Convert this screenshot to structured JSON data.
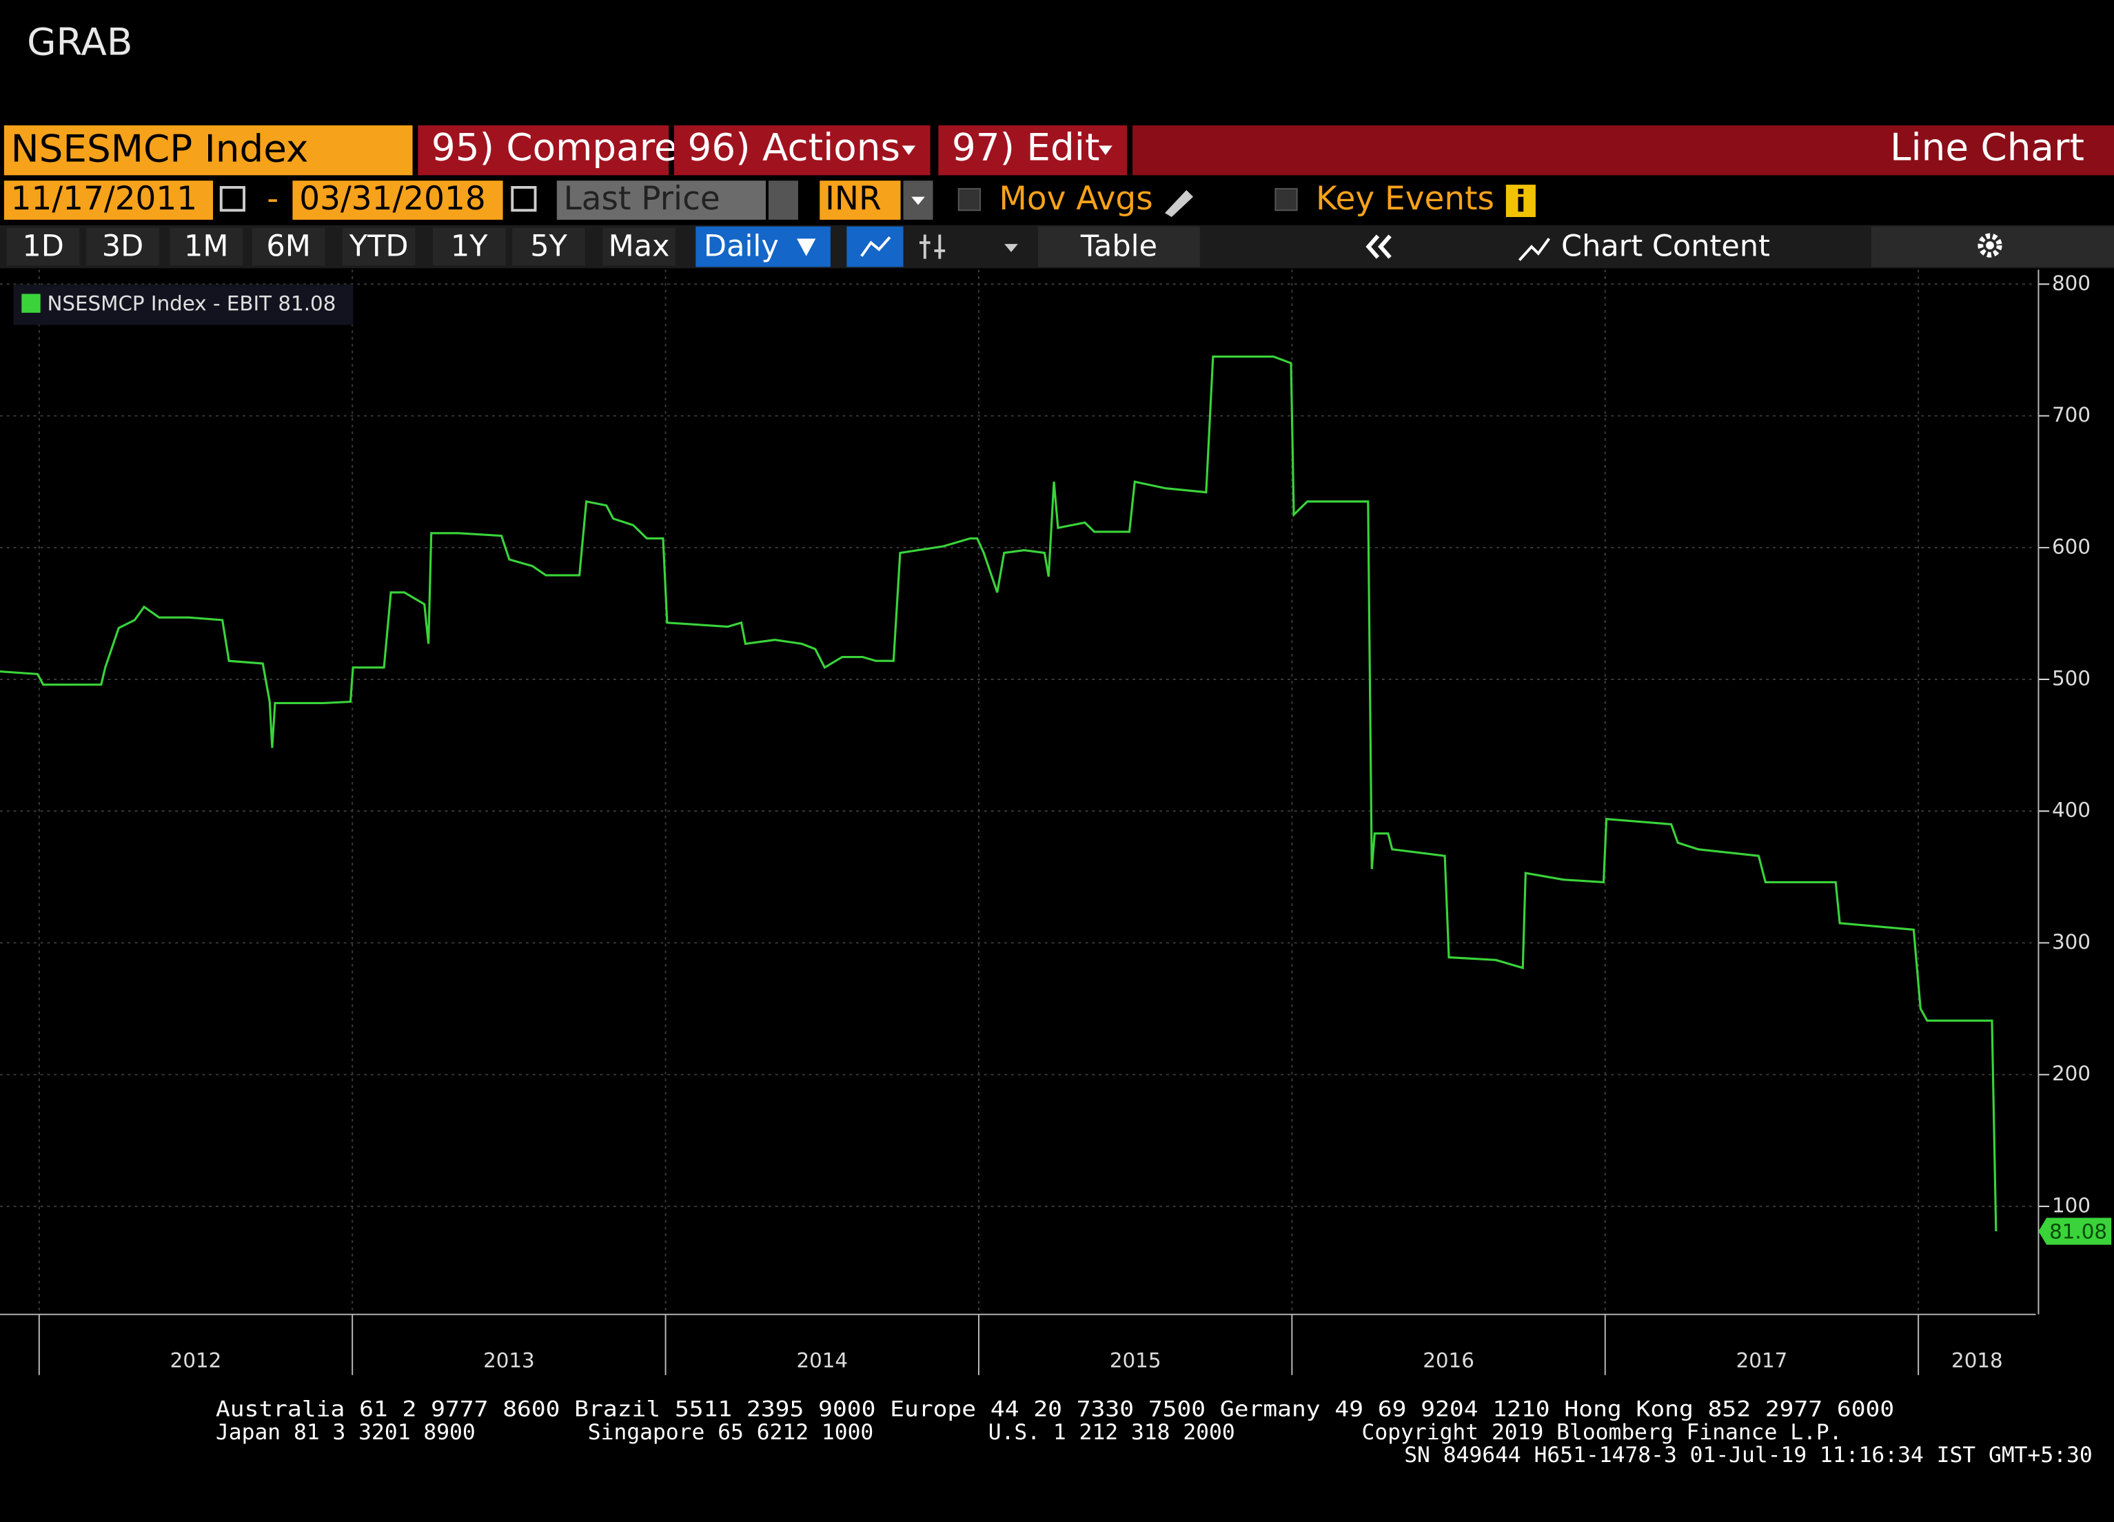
{
  "header": {
    "title": "GRAB"
  },
  "toolbar": {
    "security": "NSESMCP Index",
    "compare": "95) Compare",
    "actions": "96) Actions",
    "edit": "97) Edit",
    "view": "Line Chart"
  },
  "settings": {
    "start_date": "11/17/2011",
    "separator": "-",
    "end_date": "03/31/2018",
    "field": "Last Price",
    "currency": "INR",
    "mov_avgs": "Mov Avgs",
    "key_events": "Key Events"
  },
  "periods": [
    "1D",
    "3D",
    "1M",
    "6M",
    "YTD",
    "1Y",
    "5Y",
    "Max"
  ],
  "controls": {
    "frequency": "Daily",
    "table": "Table",
    "chart_content": "Chart Content"
  },
  "chart_data": {
    "type": "line",
    "x": [
      2011.875,
      2011.995,
      2012.013,
      2012.198,
      2012.211,
      2012.254,
      2012.305,
      2012.335,
      2012.383,
      2012.477,
      2012.585,
      2012.606,
      2012.714,
      2012.736,
      2012.744,
      2012.753,
      2012.908,
      2012.994,
      2013.002,
      2013.101,
      2013.123,
      2013.166,
      2013.23,
      2013.243,
      2013.252,
      2013.338,
      2013.476,
      2013.501,
      2013.575,
      2013.618,
      2013.725,
      2013.747,
      2013.811,
      2013.833,
      2013.897,
      2013.94,
      2013.992,
      2014.005,
      2014.199,
      2014.242,
      2014.255,
      2014.349,
      2014.435,
      2014.478,
      2014.508,
      2014.564,
      2014.629,
      2014.672,
      2014.728,
      2014.749,
      2014.887,
      2014.973,
      2014.995,
      2015.016,
      2015.059,
      2015.081,
      2015.145,
      2015.21,
      2015.223,
      2015.24,
      2015.253,
      2015.339,
      2015.369,
      2015.481,
      2015.498,
      2015.597,
      2015.726,
      2015.748,
      2015.941,
      2015.997,
      2016.006,
      2016.049,
      2016.243,
      2016.255,
      2016.264,
      2016.307,
      2016.32,
      2016.488,
      2016.501,
      2016.651,
      2016.737,
      2016.746,
      2016.866,
      2016.995,
      2017.004,
      2017.211,
      2017.232,
      2017.297,
      2017.49,
      2017.512,
      2017.736,
      2017.749,
      2017.985,
      2018.007,
      2018.028,
      2018.235,
      2018.248
    ],
    "series": [
      {
        "name": "NSESMCP Index - EBIT 81.08",
        "color": "#3ad43a",
        "values": [
          506,
          504,
          496,
          496,
          509,
          539,
          545,
          555,
          547,
          547,
          545,
          514,
          512,
          483,
          448,
          482,
          482,
          483,
          509,
          509,
          566,
          566,
          557,
          527,
          611,
          611,
          609,
          591,
          586,
          579,
          579,
          635,
          632,
          622,
          617,
          607,
          607,
          543,
          540,
          543,
          527,
          530,
          527,
          523,
          509,
          517,
          517,
          514,
          514,
          596,
          601,
          607,
          607,
          596,
          566,
          596,
          598,
          596,
          578,
          650,
          615,
          619,
          612,
          612,
          650,
          645,
          642,
          745,
          745,
          740,
          625,
          635,
          635,
          356,
          383,
          383,
          371,
          366,
          289,
          287,
          281,
          353,
          348,
          346,
          394,
          390,
          376,
          371,
          366,
          346,
          346,
          315,
          310,
          250,
          241,
          241,
          81.08
        ]
      }
    ],
    "xlim": [
      2011.875,
      2018.375
    ],
    "xticks": [
      {
        "value": 2012,
        "label": "2012"
      },
      {
        "value": 2013,
        "label": "2013"
      },
      {
        "value": 2014,
        "label": "2014"
      },
      {
        "value": 2015,
        "label": "2015"
      },
      {
        "value": 2016,
        "label": "2016"
      },
      {
        "value": 2017,
        "label": "2017"
      },
      {
        "value": 2018,
        "label": "2018"
      }
    ],
    "ylim": [
      18,
      811
    ],
    "yticks": [
      100,
      200,
      300,
      400,
      500,
      600,
      700,
      800
    ],
    "grid": true,
    "y_axis_side": "right"
  },
  "footer": {
    "line1": "Australia 61 2 9777 8600 Brazil 5511 2395 9000 Europe 44 20 7330 7500 Germany 49 69 9204 1210 Hong Kong 852 2977 6000",
    "line2": [
      "Japan 81 3 3201 8900",
      "Singapore 65 6212 1000",
      "U.S. 1 212 318 2000",
      "Copyright 2019 Bloomberg Finance L.P."
    ],
    "line3": "SN 849644 H651-1478-3 01-Jul-19 11:16:34 IST  GMT+5:30"
  }
}
